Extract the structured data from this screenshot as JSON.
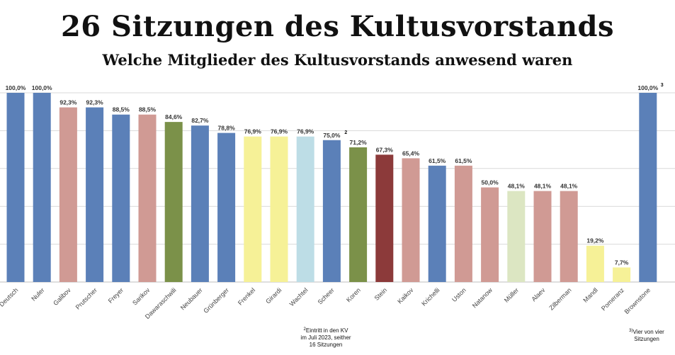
{
  "header": {
    "title": "26 Sitzungen des Kultusvorstands",
    "subtitle": "Welche Mitglieder des Kultusvorstands anwesend waren"
  },
  "footnotes": {
    "n2_mark": "2",
    "n2_lines": [
      "Eintritt in den KV",
      "im Juli 2023, seither",
      "16 Sitzungen"
    ],
    "n3_mark": "3)",
    "n3_lines": [
      "Vier von vier",
      "Sitzungen"
    ]
  },
  "chart_data": {
    "type": "bar",
    "title": "26 Sitzungen des Kultusvorstands",
    "subtitle": "Welche Mitglieder des Kultusvorstands anwesend waren",
    "categories": [
      "Deutsch",
      "Nuler",
      "Galibov",
      "Prutscher",
      "Freyer",
      "Sarikov",
      "Dawaraschwili",
      "Neubauer",
      "Grünberger",
      "Frenkel",
      "Girardi",
      "Wachtel",
      "Scheer",
      "Koren",
      "Stein",
      "Kaikov",
      "Krichelli",
      "Uston",
      "Natanow",
      "Müller",
      "Alaev",
      "Zilberman",
      "Mandl",
      "Pomeranz",
      "Brownstone"
    ],
    "values": [
      100.0,
      100.0,
      92.3,
      92.3,
      88.5,
      88.5,
      84.6,
      82.7,
      78.8,
      76.9,
      76.9,
      76.9,
      75.0,
      71.2,
      67.3,
      65.4,
      61.5,
      61.5,
      50.0,
      48.1,
      48.1,
      48.1,
      19.2,
      7.7,
      100.0
    ],
    "value_labels": [
      "100,0%",
      "100,0%",
      "92,3%",
      "92,3%",
      "88,5%",
      "88,5%",
      "84,6%",
      "82,7%",
      "78,8%",
      "76,9%",
      "76,9%",
      "76,9%",
      "75,0%",
      "71,2%",
      "67,3%",
      "65,4%",
      "61,5%",
      "61,5%",
      "50,0%",
      "48,1%",
      "48,1%",
      "48,1%",
      "19,2%",
      "7,7%",
      "100,0%"
    ],
    "label_superscripts": {
      "12": "2",
      "24": "3"
    },
    "colors": [
      "#5b80b8",
      "#5b80b8",
      "#d09a94",
      "#5b80b8",
      "#5b80b8",
      "#d09a94",
      "#7b9149",
      "#5b80b8",
      "#5b80b8",
      "#f6f197",
      "#f6f197",
      "#bddde6",
      "#5b80b8",
      "#7b9149",
      "#8c3a3a",
      "#d09a94",
      "#5b80b8",
      "#d09a94",
      "#d09a94",
      "#dce6c2",
      "#d09a94",
      "#d09a94",
      "#f6f197",
      "#f6f197",
      "#5b80b8"
    ],
    "ylim": [
      0,
      100
    ],
    "grid": true,
    "xlabel": "",
    "ylabel": ""
  }
}
